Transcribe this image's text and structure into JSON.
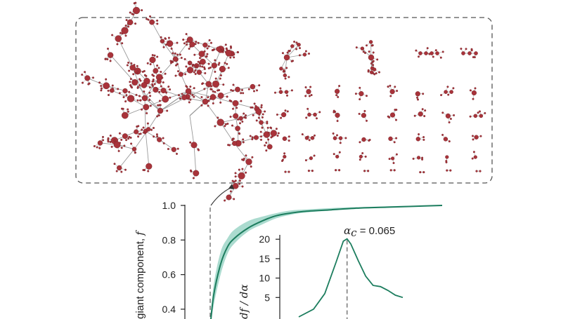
{
  "colors": {
    "curve": "#1c7d5e",
    "band": "#8fcfbf",
    "node": "#a8333a",
    "edge": "#9a9a9a",
    "frame": "#555555"
  },
  "chart_data": [
    {
      "type": "line",
      "title": "",
      "ylabel": "giant component, f",
      "y_ticks": [
        "1.0",
        "0.8",
        "0.6",
        "0.4"
      ],
      "ylim": [
        0.32,
        1.0
      ],
      "xlim": [
        0.0,
        0.4
      ],
      "grid": false,
      "series": [
        {
          "x": [
            0.065,
            0.07,
            0.08,
            0.09,
            0.1,
            0.12,
            0.14,
            0.16,
            0.18,
            0.2,
            0.24,
            0.28,
            0.32,
            0.36,
            0.4
          ],
          "values": [
            0.3,
            0.48,
            0.66,
            0.76,
            0.81,
            0.87,
            0.91,
            0.94,
            0.955,
            0.965,
            0.975,
            0.985,
            0.99,
            0.995,
            1.0
          ],
          "band_low": [
            0.28,
            0.42,
            0.6,
            0.72,
            0.78,
            0.85,
            0.89,
            0.925,
            0.945,
            0.958,
            0.97,
            0.98,
            0.988,
            0.993,
            0.998
          ],
          "band_high": [
            0.32,
            0.54,
            0.73,
            0.81,
            0.86,
            0.91,
            0.935,
            0.955,
            0.97,
            0.976,
            0.985,
            0.99,
            0.995,
            0.998,
            1.0
          ]
        }
      ]
    },
    {
      "type": "line",
      "title": "",
      "annotation": "α_c = 0.065",
      "annotation_main": "α",
      "annotation_sub": "c",
      "annotation_value": " = 0.065",
      "ylabel": "df / dα",
      "y_ticks": [
        "20",
        "15",
        "10",
        "5"
      ],
      "ylim": [
        0,
        21
      ],
      "xlim": [
        0.0,
        0.4
      ],
      "series": [
        {
          "x": [
            0.0,
            0.02,
            0.035,
            0.05,
            0.06,
            0.065,
            0.07,
            0.08,
            0.09,
            0.1,
            0.11,
            0.12,
            0.13,
            0.14
          ],
          "values": [
            0,
            2,
            6,
            14,
            19.5,
            20.1,
            18.8,
            14.5,
            10.5,
            8.1,
            7.8,
            6.8,
            5.6,
            5.0
          ]
        }
      ]
    }
  ]
}
